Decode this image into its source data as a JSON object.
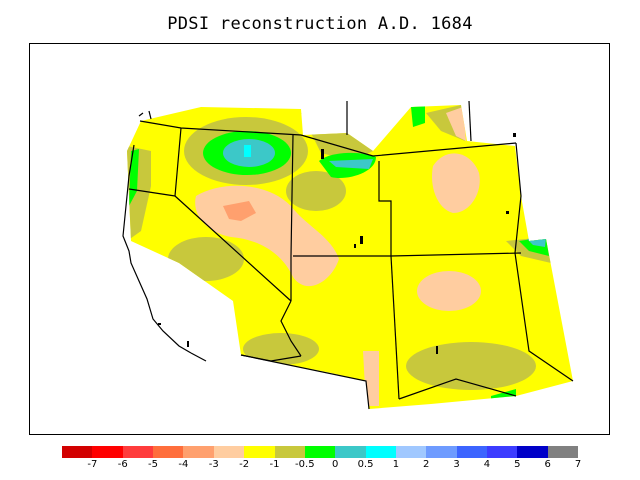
{
  "title": "PDSI reconstruction A.D. 1684",
  "legend": {
    "colors": [
      "#d20000",
      "#ff0000",
      "#ff3c3c",
      "#ff6e3c",
      "#ffa06e",
      "#ffcda0",
      "#ffff00",
      "#c8c83c",
      "#00ff00",
      "#3cc8c8",
      "#00ffff",
      "#a0c8ff",
      "#6e9bff",
      "#3c64ff",
      "#3c3cff",
      "#0000c8",
      "#808080"
    ],
    "labels": [
      "-7",
      "-6",
      "-5",
      "-4",
      "-3",
      "-2",
      "-1",
      "-0.5",
      "0",
      "0.5",
      "1",
      "2",
      "3",
      "4",
      "5",
      "6",
      "7"
    ]
  }
}
